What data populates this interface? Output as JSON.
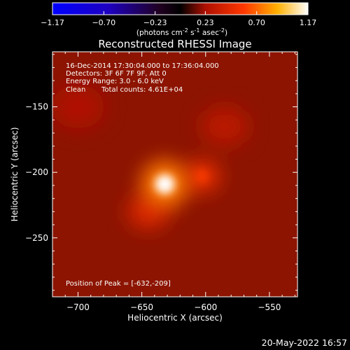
{
  "chart_data": {
    "type": "heatmap",
    "title": "Reconstructed RHESSI Image",
    "xlabel": "Heliocentric X (arcsec)",
    "ylabel": "Heliocentric Y (arcsec)",
    "xlim": [
      -720,
      -528
    ],
    "ylim": [
      -295,
      -108
    ],
    "xticks": [
      -700,
      -650,
      -600,
      -550
    ],
    "yticks": [
      -150,
      -200,
      -250
    ],
    "xtick_labels": [
      "−700",
      "−650",
      "−600",
      "−550"
    ],
    "ytick_labels": [
      "−150",
      "−200",
      "−250"
    ],
    "colorbar": {
      "min": -1.17,
      "max": 1.17,
      "ticks": [
        -1.17,
        -0.7,
        -0.23,
        0.23,
        0.7,
        1.17
      ],
      "tick_labels": [
        "−1.17",
        "−0.70",
        "−0.23",
        "0.23",
        "0.70",
        "1.17"
      ],
      "colors": [
        "#0000ff",
        "#000000",
        "#ff0000",
        "#ffff00",
        "#ffffff"
      ]
    },
    "peak": {
      "x": -632,
      "y": -209
    },
    "sources": [
      {
        "x": -632,
        "y": -209,
        "value": 1.17
      },
      {
        "x": -603,
        "y": -203,
        "value": 0.55
      },
      {
        "x": -645,
        "y": -230,
        "value": 0.45
      },
      {
        "x": -585,
        "y": -165,
        "value": 0.3
      },
      {
        "x": -700,
        "y": -150,
        "value": 0.25
      }
    ],
    "background_level": 0.2
  },
  "units_line": {
    "pre": "(photons cm",
    "e1": "-2",
    "mid": " s",
    "e2": "-1",
    "mid2": " asec",
    "e3": "-2",
    "post": ")"
  },
  "info": {
    "time": "16-Dec-2014 17:30:04.000 to 17:36:04.000",
    "detectors": "Detectors: 3F 6F 7F 9F, Att 0",
    "energy": "Energy Range: 3.0 - 6.0 keV",
    "method": "Clean",
    "counts": "Total counts: 4.61E+04"
  },
  "peak_text": "Position of Peak = [-632,-209]",
  "timestamp": "20-May-2022 16:57"
}
